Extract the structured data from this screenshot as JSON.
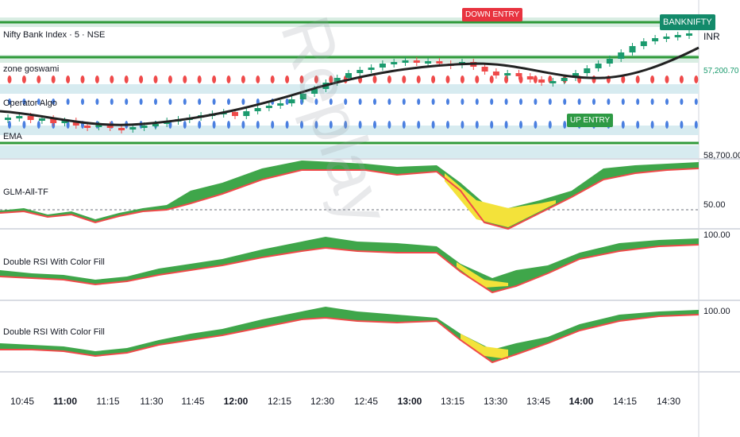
{
  "main_pane": {
    "symbol_title": "Nifty Bank Index · 5 · NSE",
    "ind_zone": "zone goswami",
    "ind_operator": "Operator Algo",
    "ind_ema": "EMA",
    "currency": "INR",
    "price_tag": "57,200.70",
    "price_level": "58,700.00",
    "tag_banknifty": "BANKNIFTY",
    "tag_down": "DOWN ENTRY",
    "tag_up": "UP ENTRY",
    "watermark": "Replay"
  },
  "panes": [
    {
      "title": "GLM-All-TF",
      "level": "50.00"
    },
    {
      "title": "Double RSI With Color Fill",
      "level": "100.00"
    },
    {
      "title": "Double RSI With Color Fill",
      "level": "100.00"
    }
  ],
  "time_axis": [
    {
      "label": "10:45",
      "bold": false
    },
    {
      "label": "11:00",
      "bold": true
    },
    {
      "label": "11:15",
      "bold": false
    },
    {
      "label": "11:30",
      "bold": false
    },
    {
      "label": "11:45",
      "bold": false
    },
    {
      "label": "12:00",
      "bold": true
    },
    {
      "label": "12:15",
      "bold": false
    },
    {
      "label": "12:30",
      "bold": false
    },
    {
      "label": "12:45",
      "bold": false
    },
    {
      "label": "13:00",
      "bold": true
    },
    {
      "label": "13:15",
      "bold": false
    },
    {
      "label": "13:30",
      "bold": false
    },
    {
      "label": "13:45",
      "bold": false
    },
    {
      "label": "14:00",
      "bold": true
    },
    {
      "label": "14:15",
      "bold": false
    },
    {
      "label": "14:30",
      "bold": false
    }
  ],
  "colors": {
    "bull": "#1b9b6e",
    "bear": "#ef4a4a",
    "green_fill": "#3fa64a",
    "red_line": "#ef4a4a",
    "yellow_fill": "#f3e23a",
    "blue_dot": "#4a7fe0",
    "zone_green": "#2f9a3a",
    "ema_line": "#222222",
    "teal_tag": "#138a6a",
    "down_tag": "#e8333f",
    "up_tag": "#2e9a44"
  }
}
